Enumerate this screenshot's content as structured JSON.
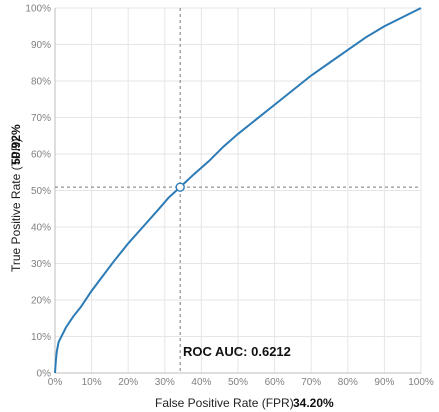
{
  "chart_data": {
    "type": "line",
    "title": "",
    "xlabel": "False Positive Rate (FPR)",
    "ylabel": "True Positive Rate (TPR)",
    "xlim": [
      0,
      100
    ],
    "ylim": [
      0,
      100
    ],
    "grid": true,
    "x_ticks": [
      "0%",
      "10%",
      "20%",
      "30%",
      "40%",
      "50%",
      "60%",
      "70%",
      "80%",
      "90%",
      "100%"
    ],
    "y_ticks": [
      "0%",
      "10%",
      "20%",
      "30%",
      "40%",
      "50%",
      "60%",
      "70%",
      "80%",
      "90%",
      "100%"
    ],
    "series": [
      {
        "color": "#2c7bb6",
        "x": [
          0,
          0.2,
          0.5,
          1,
          2,
          3,
          5,
          7,
          10,
          13,
          16,
          20,
          24,
          28,
          31,
          34.2,
          38,
          42,
          46,
          50,
          55,
          60,
          65,
          70,
          75,
          80,
          85,
          90,
          95,
          100
        ],
        "y": [
          0,
          3,
          6,
          8.5,
          10.5,
          12.5,
          15.5,
          18,
          22.5,
          26.5,
          30.5,
          35.5,
          40,
          44.5,
          48,
          50.92,
          54.5,
          58,
          62,
          65.5,
          69.5,
          73.5,
          77.5,
          81.5,
          85,
          88.5,
          92,
          95,
          97.5,
          100
        ]
      }
    ],
    "operating_point": {
      "fpr": 34.2,
      "tpr": 50.92,
      "fpr_label": "34.20%",
      "tpr_label": "50.92%"
    },
    "annotation": "ROC AUC: 0.6212"
  }
}
